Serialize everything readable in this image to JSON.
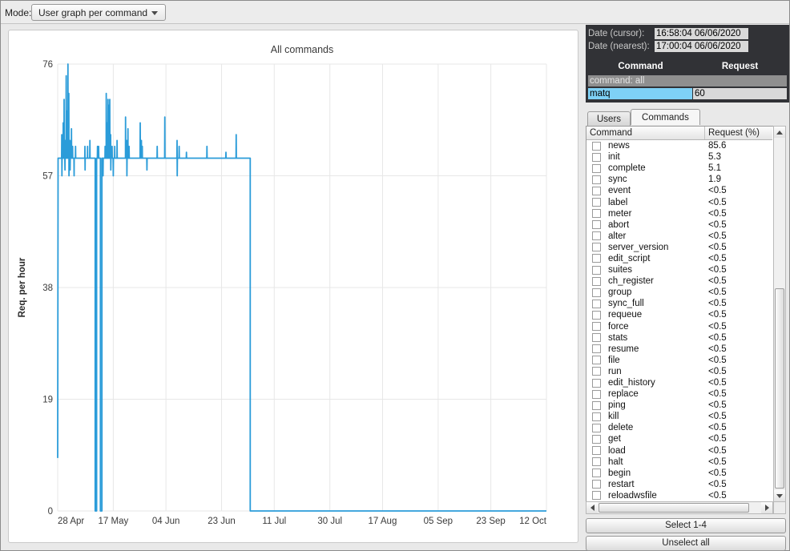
{
  "toolbar": {
    "mode_label": "Mode:",
    "mode_value": "User graph per command"
  },
  "chart_data": {
    "type": "line",
    "title": "All commands",
    "ylabel": "Req. per hour",
    "xlabel": "",
    "ylim": [
      0,
      76
    ],
    "yticks": [
      0,
      19,
      38,
      57,
      76
    ],
    "xtick_labels": [
      "28 Apr",
      "17 May",
      "04 Jun",
      "23 Jun",
      "11 Jul",
      "30 Jul",
      "17 Aug",
      "05 Sep",
      "23 Sep",
      "12 Oct"
    ],
    "xtick_days": [
      0,
      19,
      37,
      56,
      74,
      93,
      111,
      130,
      148,
      167
    ],
    "x_range_days": [
      0,
      167
    ],
    "grid": true,
    "legend": "none",
    "line_color": "#2b9cd9",
    "series": [
      {
        "name": "All commands",
        "points_days_value": [
          [
            0,
            9
          ],
          [
            0.15,
            60
          ],
          [
            1.35,
            60
          ],
          [
            1.4,
            64
          ],
          [
            1.45,
            57
          ],
          [
            1.5,
            60
          ],
          [
            1.85,
            60
          ],
          [
            1.9,
            66
          ],
          [
            1.95,
            60
          ],
          [
            2.15,
            60
          ],
          [
            2.2,
            70
          ],
          [
            2.25,
            60
          ],
          [
            2.45,
            60
          ],
          [
            2.5,
            58
          ],
          [
            2.55,
            63
          ],
          [
            2.6,
            60
          ],
          [
            2.85,
            60
          ],
          [
            2.9,
            74
          ],
          [
            2.95,
            60
          ],
          [
            3.15,
            60
          ],
          [
            3.2,
            68
          ],
          [
            3.25,
            60
          ],
          [
            3.45,
            60
          ],
          [
            3.5,
            76
          ],
          [
            3.55,
            60
          ],
          [
            3.75,
            60
          ],
          [
            3.8,
            71
          ],
          [
            3.85,
            57
          ],
          [
            3.9,
            60
          ],
          [
            4.15,
            60
          ],
          [
            4.2,
            63
          ],
          [
            4.25,
            58
          ],
          [
            4.3,
            60
          ],
          [
            4.65,
            60
          ],
          [
            4.7,
            65
          ],
          [
            4.75,
            60
          ],
          [
            5.05,
            60
          ],
          [
            5.1,
            62
          ],
          [
            5.15,
            60
          ],
          [
            5.55,
            60
          ],
          [
            5.6,
            57
          ],
          [
            5.65,
            60
          ],
          [
            6.05,
            60
          ],
          [
            6.1,
            62
          ],
          [
            6.15,
            60
          ],
          [
            9.25,
            60
          ],
          [
            9.3,
            62
          ],
          [
            9.35,
            58
          ],
          [
            9.4,
            60
          ],
          [
            10.15,
            60
          ],
          [
            10.2,
            62
          ],
          [
            10.25,
            60
          ],
          [
            10.95,
            60
          ],
          [
            11,
            63
          ],
          [
            11.05,
            60
          ],
          [
            12.8,
            60
          ],
          [
            12.8,
            0
          ],
          [
            13.3,
            0
          ],
          [
            13.3,
            60
          ],
          [
            13.55,
            60
          ],
          [
            13.6,
            62
          ],
          [
            13.65,
            60
          ],
          [
            13.95,
            60
          ],
          [
            14,
            62
          ],
          [
            14.05,
            60
          ],
          [
            14.6,
            60
          ],
          [
            14.6,
            0
          ],
          [
            15.1,
            0
          ],
          [
            15.1,
            60
          ],
          [
            15.45,
            60
          ],
          [
            15.5,
            57
          ],
          [
            15.55,
            60
          ],
          [
            16.15,
            60
          ],
          [
            16.2,
            62
          ],
          [
            16.25,
            60
          ],
          [
            16.55,
            60
          ],
          [
            16.6,
            71
          ],
          [
            16.65,
            60
          ],
          [
            16.85,
            60
          ],
          [
            16.9,
            66
          ],
          [
            16.95,
            60
          ],
          [
            17.15,
            60
          ],
          [
            17.2,
            70
          ],
          [
            17.25,
            60
          ],
          [
            17.45,
            60
          ],
          [
            17.5,
            69
          ],
          [
            17.55,
            60
          ],
          [
            17.75,
            60
          ],
          [
            17.8,
            70
          ],
          [
            17.85,
            60
          ],
          [
            18.05,
            60
          ],
          [
            18.1,
            64
          ],
          [
            18.15,
            58
          ],
          [
            18.2,
            60
          ],
          [
            18.55,
            60
          ],
          [
            18.6,
            62
          ],
          [
            18.65,
            60
          ],
          [
            18.95,
            60
          ],
          [
            19,
            57
          ],
          [
            19.05,
            60
          ],
          [
            19.45,
            60
          ],
          [
            19.5,
            62
          ],
          [
            19.55,
            60
          ],
          [
            20.25,
            60
          ],
          [
            20.3,
            63
          ],
          [
            20.35,
            60
          ],
          [
            23.15,
            60
          ],
          [
            23.2,
            67
          ],
          [
            23.25,
            60
          ],
          [
            23.55,
            60
          ],
          [
            23.6,
            63
          ],
          [
            23.65,
            57
          ],
          [
            23.7,
            60
          ],
          [
            23.95,
            60
          ],
          [
            24,
            65
          ],
          [
            24.05,
            60
          ],
          [
            24.35,
            60
          ],
          [
            24.4,
            62
          ],
          [
            24.45,
            60
          ],
          [
            28.15,
            60
          ],
          [
            28.2,
            66
          ],
          [
            28.25,
            60
          ],
          [
            28.55,
            60
          ],
          [
            28.6,
            63
          ],
          [
            28.65,
            60
          ],
          [
            28.85,
            60
          ],
          [
            28.9,
            62
          ],
          [
            28.95,
            60
          ],
          [
            30.45,
            60
          ],
          [
            30.5,
            58
          ],
          [
            30.55,
            60
          ],
          [
            33.95,
            60
          ],
          [
            34,
            62
          ],
          [
            34.05,
            60
          ],
          [
            36.55,
            60
          ],
          [
            36.6,
            67
          ],
          [
            36.65,
            60
          ],
          [
            40.75,
            60
          ],
          [
            40.8,
            63
          ],
          [
            40.85,
            57
          ],
          [
            40.9,
            60
          ],
          [
            41.45,
            60
          ],
          [
            41.5,
            62
          ],
          [
            41.55,
            60
          ],
          [
            43.95,
            60
          ],
          [
            44,
            61
          ],
          [
            44.05,
            60
          ],
          [
            50.95,
            60
          ],
          [
            51,
            62
          ],
          [
            51.05,
            60
          ],
          [
            57.45,
            60
          ],
          [
            57.5,
            61
          ],
          [
            57.55,
            60
          ],
          [
            60.95,
            60
          ],
          [
            61,
            64
          ],
          [
            61.05,
            60
          ],
          [
            65.8,
            60
          ],
          [
            65.8,
            0
          ],
          [
            167,
            0
          ]
        ]
      }
    ]
  },
  "info_panel": {
    "date_cursor_label": "Date (cursor):",
    "date_cursor_value": "16:58:04 06/06/2020",
    "date_nearest_label": "Date (nearest):",
    "date_nearest_value": "17:00:04 06/06/2020",
    "mini_table": {
      "headers": [
        "Command",
        "Request"
      ],
      "group_row": "command: all",
      "selected_row": {
        "command": "matq",
        "request": "60"
      }
    }
  },
  "tabs": [
    {
      "label": "Users",
      "active": false
    },
    {
      "label": "Commands",
      "active": true
    }
  ],
  "commands_table": {
    "headers": [
      "Command",
      "Request (%)"
    ],
    "rows": [
      {
        "name": "news",
        "request": "85.6",
        "checked": false
      },
      {
        "name": "init",
        "request": "5.3",
        "checked": false
      },
      {
        "name": "complete",
        "request": "5.1",
        "checked": false
      },
      {
        "name": "sync",
        "request": "1.9",
        "checked": false
      },
      {
        "name": "event",
        "request": "<0.5",
        "checked": false
      },
      {
        "name": "label",
        "request": "<0.5",
        "checked": false
      },
      {
        "name": "meter",
        "request": "<0.5",
        "checked": false
      },
      {
        "name": "abort",
        "request": "<0.5",
        "checked": false
      },
      {
        "name": "alter",
        "request": "<0.5",
        "checked": false
      },
      {
        "name": "server_version",
        "request": "<0.5",
        "checked": false
      },
      {
        "name": "edit_script",
        "request": "<0.5",
        "checked": false
      },
      {
        "name": "suites",
        "request": "<0.5",
        "checked": false
      },
      {
        "name": "ch_register",
        "request": "<0.5",
        "checked": false
      },
      {
        "name": "group",
        "request": "<0.5",
        "checked": false
      },
      {
        "name": "sync_full",
        "request": "<0.5",
        "checked": false
      },
      {
        "name": "requeue",
        "request": "<0.5",
        "checked": false
      },
      {
        "name": "force",
        "request": "<0.5",
        "checked": false
      },
      {
        "name": "stats",
        "request": "<0.5",
        "checked": false
      },
      {
        "name": "resume",
        "request": "<0.5",
        "checked": false
      },
      {
        "name": "file",
        "request": "<0.5",
        "checked": false
      },
      {
        "name": "run",
        "request": "<0.5",
        "checked": false
      },
      {
        "name": "edit_history",
        "request": "<0.5",
        "checked": false
      },
      {
        "name": "replace",
        "request": "<0.5",
        "checked": false
      },
      {
        "name": "ping",
        "request": "<0.5",
        "checked": false
      },
      {
        "name": "kill",
        "request": "<0.5",
        "checked": false
      },
      {
        "name": "delete",
        "request": "<0.5",
        "checked": false
      },
      {
        "name": "get",
        "request": "<0.5",
        "checked": false
      },
      {
        "name": "load",
        "request": "<0.5",
        "checked": false
      },
      {
        "name": "halt",
        "request": "<0.5",
        "checked": false
      },
      {
        "name": "begin",
        "request": "<0.5",
        "checked": false
      },
      {
        "name": "restart",
        "request": "<0.5",
        "checked": false
      },
      {
        "name": "reloadwsfile",
        "request": "<0.5",
        "checked": false
      }
    ]
  },
  "buttons": {
    "select": "Select 1-4",
    "unselect": "Unselect all"
  },
  "colors": {
    "accent_line": "#2b9cd9",
    "selection_blue": "#7ed1f6",
    "panel_dark": "#313236",
    "value_box": "#d9d9d9",
    "group_row_gray": "#8f8f8f",
    "grid": "#e7e7e7"
  }
}
